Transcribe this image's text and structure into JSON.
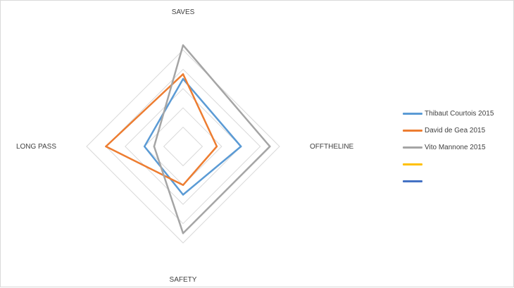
{
  "chart_data": {
    "type": "radar",
    "axes": [
      "SAVES",
      "OFFTHELINE",
      "SAFETY",
      "LONG PASS"
    ],
    "rmax": 10,
    "grid_levels": [
      2,
      4,
      6,
      8,
      10
    ],
    "legend_position": "right",
    "series": [
      {
        "name": "Thibaut Courtois 2015",
        "color": "#5b9bd5",
        "values": [
          7,
          6,
          5,
          4
        ]
      },
      {
        "name": "David de Gea 2015",
        "color": "#ed7d31",
        "values": [
          7.5,
          3.5,
          4,
          8
        ]
      },
      {
        "name": "Vito Mannone 2015",
        "color": "#a5a5a5",
        "values": [
          10.5,
          9,
          9,
          3
        ]
      },
      {
        "name": "",
        "color": "#ffc000",
        "values": []
      },
      {
        "name": "",
        "color": "#4472c4",
        "values": []
      }
    ]
  }
}
